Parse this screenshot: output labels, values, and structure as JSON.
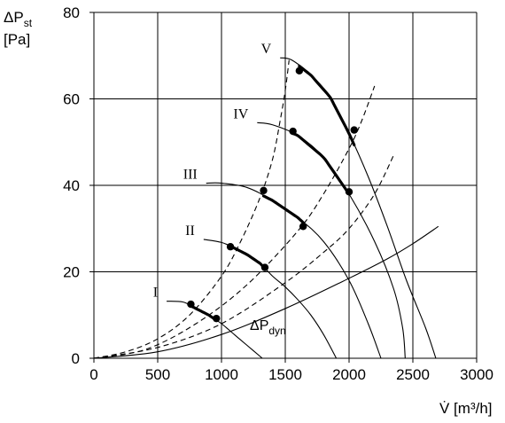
{
  "chart_data": {
    "type": "line",
    "title": "",
    "xlabel": "V̇ [m³/h]",
    "ylabel": {
      "line1_main": "ΔP",
      "line1_sub": "st",
      "line2": "[Pa]"
    },
    "xlim": [
      0,
      3000
    ],
    "ylim": [
      0,
      80
    ],
    "x_ticks": [
      0,
      500,
      1000,
      1500,
      2000,
      2500,
      3000
    ],
    "y_ticks": [
      0,
      20,
      40,
      60,
      80
    ],
    "grid": true,
    "fan_curves": [
      {
        "name": "I",
        "points": [
          [
            570,
            13.2
          ],
          [
            700,
            13.0
          ],
          [
            800,
            11.5
          ],
          [
            900,
            10.0
          ],
          [
            1000,
            8.0
          ],
          [
            1100,
            5.5
          ],
          [
            1200,
            3.0
          ],
          [
            1320,
            0
          ]
        ],
        "bold_range": [
          760,
          960
        ],
        "markers": [
          [
            760,
            12.5
          ],
          [
            960,
            9.2
          ]
        ]
      },
      {
        "name": "II",
        "points": [
          [
            860,
            27.5
          ],
          [
            1000,
            26.8
          ],
          [
            1100,
            25.5
          ],
          [
            1200,
            24.0
          ],
          [
            1300,
            22.0
          ],
          [
            1400,
            19.0
          ],
          [
            1500,
            16.5
          ],
          [
            1600,
            13.5
          ],
          [
            1700,
            10.0
          ],
          [
            1800,
            5.5
          ],
          [
            1900,
            0
          ]
        ],
        "bold_range": [
          1070,
          1340
        ],
        "markers": [
          [
            1070,
            25.8
          ],
          [
            1340,
            21.0
          ]
        ]
      },
      {
        "name": "III",
        "points": [
          [
            880,
            40.5
          ],
          [
            1000,
            40.5
          ],
          [
            1200,
            39.5
          ],
          [
            1400,
            36.5
          ],
          [
            1600,
            32.5
          ],
          [
            1800,
            27.0
          ],
          [
            2000,
            18.0
          ],
          [
            2150,
            8.0
          ],
          [
            2250,
            0
          ]
        ],
        "bold_range": [
          1330,
          1640
        ],
        "markers": [
          [
            1330,
            38.8
          ],
          [
            1640,
            30.5
          ]
        ]
      },
      {
        "name": "IV",
        "points": [
          [
            1280,
            54.5
          ],
          [
            1400,
            54.0
          ],
          [
            1600,
            51.5
          ],
          [
            1800,
            46.5
          ],
          [
            2000,
            38.0
          ],
          [
            2200,
            27.0
          ],
          [
            2350,
            16.0
          ],
          [
            2420,
            7.0
          ],
          [
            2440,
            0
          ]
        ],
        "bold_range": [
          1560,
          2000
        ],
        "markers": [
          [
            1560,
            52.5
          ],
          [
            2000,
            38.5
          ]
        ]
      },
      {
        "name": "V",
        "points": [
          [
            1460,
            69.5
          ],
          [
            1550,
            69.0
          ],
          [
            1700,
            65.5
          ],
          [
            1850,
            60.5
          ],
          [
            2000,
            52.0
          ],
          [
            2150,
            42.0
          ],
          [
            2300,
            30.5
          ],
          [
            2450,
            18.0
          ],
          [
            2600,
            7.0
          ],
          [
            2680,
            0
          ]
        ],
        "bold_range": [
          1610,
          2040
        ],
        "markers": [
          [
            1610,
            66.5
          ],
          [
            2040,
            52.8
          ]
        ]
      }
    ],
    "system_curves": [
      {
        "points": [
          [
            0,
            0
          ],
          [
            250,
            1.5
          ],
          [
            500,
            4.5
          ],
          [
            750,
            10.0
          ],
          [
            1000,
            19.0
          ],
          [
            1150,
            27.0
          ],
          [
            1300,
            37.0
          ],
          [
            1400,
            46.0
          ],
          [
            1460,
            55.0
          ],
          [
            1500,
            62.0
          ],
          [
            1530,
            69.0
          ]
        ]
      },
      {
        "points": [
          [
            0,
            0
          ],
          [
            400,
            2.0
          ],
          [
            800,
            8.0
          ],
          [
            1200,
            17.0
          ],
          [
            1600,
            29.5
          ],
          [
            1800,
            38.0
          ],
          [
            2000,
            48.5
          ],
          [
            2100,
            55.0
          ],
          [
            2200,
            63.0
          ]
        ]
      },
      {
        "points": [
          [
            0,
            0
          ],
          [
            500,
            2.5
          ],
          [
            1000,
            8.0
          ],
          [
            1500,
            17.5
          ],
          [
            1800,
            24.5
          ],
          [
            2000,
            30.0
          ],
          [
            2200,
            38.0
          ],
          [
            2350,
            47.0
          ]
        ]
      }
    ],
    "dyn_curve": {
      "label_main": "ΔP",
      "label_sub": "dyn",
      "points": [
        [
          0,
          0
        ],
        [
          500,
          1.5
        ],
        [
          1000,
          5.5
        ],
        [
          1500,
          11.5
        ],
        [
          2000,
          18.5
        ],
        [
          2300,
          23.0
        ],
        [
          2500,
          26.5
        ],
        [
          2700,
          30.5
        ]
      ]
    },
    "colors": {
      "line": "#000000",
      "grid": "#000000",
      "background": "#ffffff"
    }
  }
}
